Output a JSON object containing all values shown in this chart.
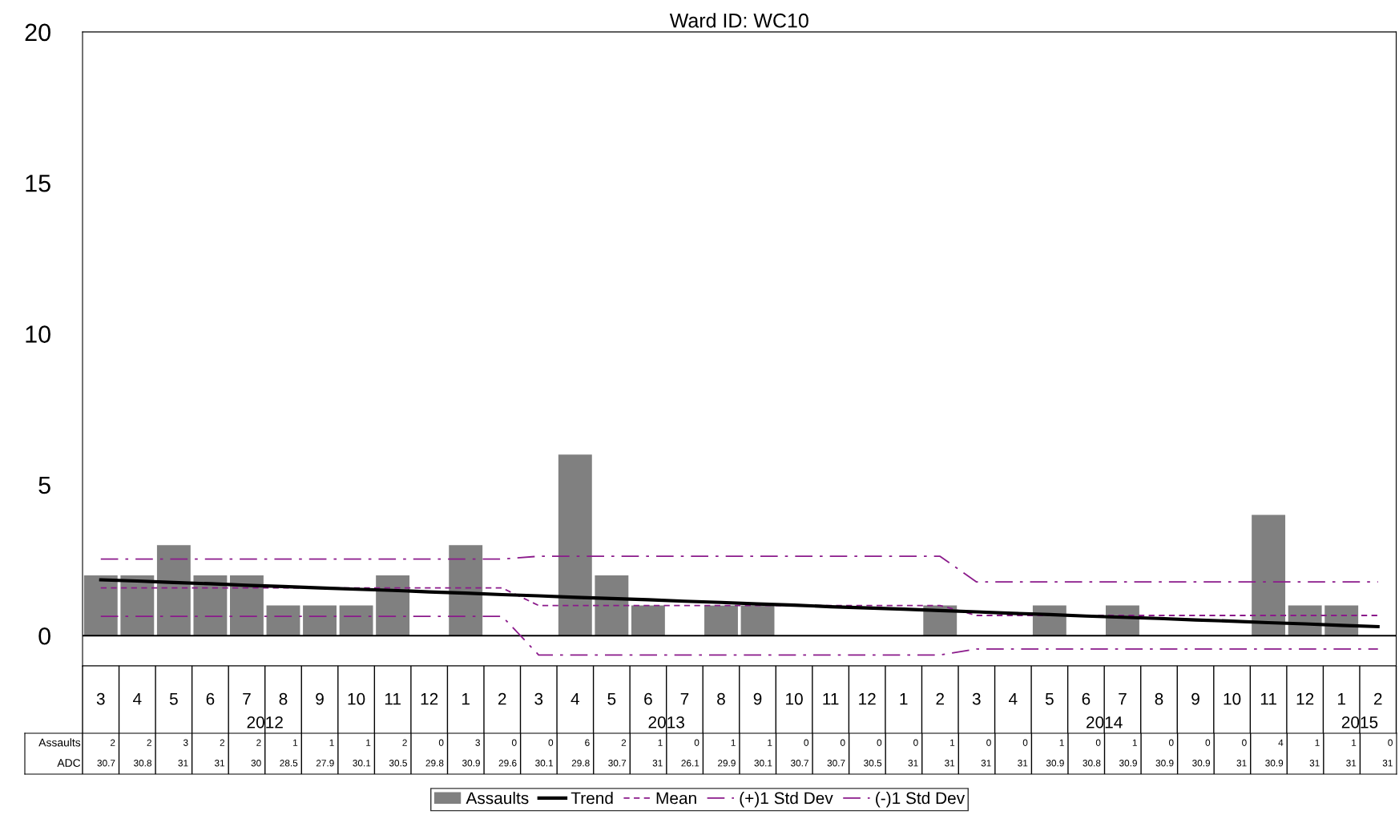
{
  "chart_data": [
    {
      "type": "bar",
      "title": "Ward ID: WC10",
      "categories": [
        "3",
        "4",
        "5",
        "6",
        "7",
        "8",
        "9",
        "10",
        "11",
        "12",
        "1",
        "2",
        "3",
        "4",
        "5",
        "6",
        "7",
        "8",
        "9",
        "10",
        "11",
        "12",
        "1",
        "2",
        "3",
        "4",
        "5",
        "6",
        "7",
        "8",
        "9",
        "10",
        "11",
        "12",
        "1",
        "2"
      ],
      "series": [
        {
          "name": "Assaults",
          "type": "bar",
          "color": "#808080",
          "values": [
            2,
            2,
            3,
            2,
            2,
            1,
            1,
            1,
            2,
            0,
            3,
            0,
            0,
            6,
            2,
            1,
            0,
            1,
            1,
            0,
            0,
            0,
            0,
            1,
            0,
            0,
            1,
            0,
            1,
            0,
            0,
            0,
            4,
            1,
            1,
            0
          ]
        },
        {
          "name": "Trend",
          "type": "line",
          "color": "#000000",
          "line_style": "solid",
          "values": [
            1.85,
            1.81,
            1.76,
            1.72,
            1.67,
            1.63,
            1.58,
            1.54,
            1.5,
            1.45,
            1.41,
            1.36,
            1.32,
            1.27,
            1.23,
            1.19,
            1.14,
            1.1,
            1.05,
            1.01,
            0.96,
            0.92,
            0.88,
            0.83,
            0.79,
            0.74,
            0.7,
            0.65,
            0.61,
            0.57,
            0.52,
            0.48,
            0.43,
            0.39,
            0.34,
            0.3
          ]
        },
        {
          "name": "Mean",
          "type": "line",
          "color": "#8b1a8b",
          "line_style": "dashed",
          "values": [
            1.58,
            1.58,
            1.58,
            1.58,
            1.58,
            1.58,
            1.58,
            1.58,
            1.58,
            1.58,
            1.58,
            1.58,
            1.0,
            1.0,
            1.0,
            1.0,
            1.0,
            1.0,
            1.0,
            1.0,
            1.0,
            1.0,
            1.0,
            1.0,
            0.67,
            0.67,
            0.67,
            0.67,
            0.67,
            0.67,
            0.67,
            0.67,
            0.67,
            0.67,
            0.67,
            0.67
          ]
        },
        {
          "name": "(+)1 Std Dev",
          "type": "line",
          "color": "#8b1a8b",
          "line_style": "dashdot",
          "values": [
            2.54,
            2.54,
            2.54,
            2.54,
            2.54,
            2.54,
            2.54,
            2.54,
            2.54,
            2.54,
            2.54,
            2.54,
            2.63,
            2.63,
            2.63,
            2.63,
            2.63,
            2.63,
            2.63,
            2.63,
            2.63,
            2.63,
            2.63,
            2.63,
            1.78,
            1.78,
            1.78,
            1.78,
            1.78,
            1.78,
            1.78,
            1.78,
            1.78,
            1.78,
            1.78,
            1.78
          ]
        },
        {
          "name": "(-)1 Std Dev",
          "type": "line",
          "color": "#8b1a8b",
          "line_style": "dashdot",
          "values": [
            0.64,
            0.64,
            0.64,
            0.64,
            0.64,
            0.64,
            0.64,
            0.64,
            0.64,
            0.64,
            0.64,
            0.64,
            -0.64,
            -0.64,
            -0.64,
            -0.64,
            -0.64,
            -0.64,
            -0.64,
            -0.64,
            -0.64,
            -0.64,
            -0.64,
            -0.64,
            -0.44,
            -0.44,
            -0.44,
            -0.44,
            -0.44,
            -0.44,
            -0.44,
            -0.44,
            -0.44,
            -0.44,
            -0.44,
            -0.44
          ]
        }
      ],
      "annotations": [
        "2012",
        "2013",
        "2014",
        "2015"
      ],
      "ylim": [
        -1,
        20
      ],
      "yticks": [
        0,
        5,
        10,
        15,
        20
      ],
      "ref_lines": [
        {
          "axis": "y",
          "value": 0,
          "color": "#000000",
          "line_style": "solid"
        }
      ],
      "grid": false,
      "legend": "bottom"
    },
    {
      "type": "heatmap",
      "data_labels": true,
      "categories": [
        null,
        null,
        null,
        null,
        null,
        null,
        null,
        null,
        null,
        null,
        null,
        null,
        null,
        null,
        null,
        null,
        null,
        null,
        null,
        null,
        null,
        null,
        null,
        null,
        null,
        null,
        null,
        null,
        null,
        null,
        null,
        null,
        null,
        null,
        null,
        null
      ],
      "y_categories": [
        "Assaults",
        "ADC"
      ],
      "cells": [
        [
          2,
          2,
          3,
          2,
          2,
          1,
          1,
          1,
          2,
          0,
          3,
          0,
          0,
          6,
          2,
          1,
          0,
          1,
          1,
          0,
          0,
          0,
          0,
          1,
          0,
          0,
          1,
          0,
          1,
          0,
          0,
          0,
          4,
          1,
          1,
          0
        ],
        [
          30.7,
          30.8,
          31,
          31,
          30,
          28.5,
          27.9,
          30.1,
          30.5,
          29.8,
          30.9,
          29.6,
          30.1,
          29.8,
          30.7,
          31,
          26.1,
          29.9,
          30.1,
          30.7,
          30.7,
          30.5,
          31,
          31,
          31,
          31,
          30.9,
          30.8,
          30.9,
          30.9,
          30.9,
          31,
          30.9,
          31,
          31,
          31
        ]
      ]
    }
  ]
}
